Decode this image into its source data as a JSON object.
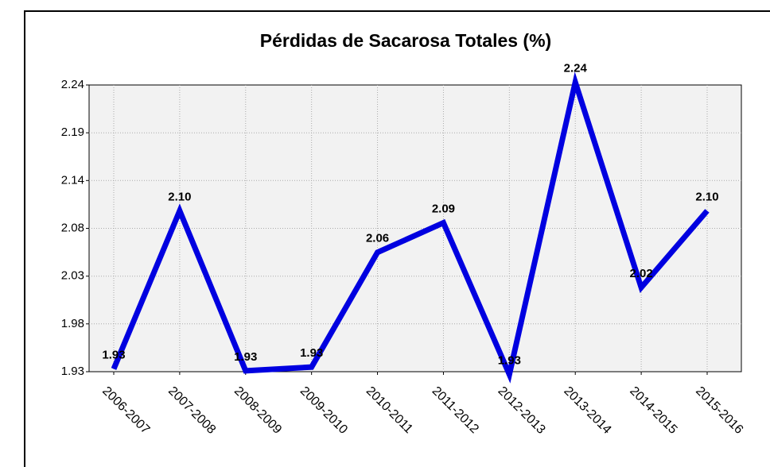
{
  "chart_data": {
    "type": "line",
    "title": "Pérdidas de Sacarosa Totales  (%)",
    "categories": [
      "2006-2007",
      "2007-2008",
      "2008-2009",
      "2009-2010",
      "2010-2011",
      "2011-2012",
      "2012-2013",
      "2013-2014",
      "2014-2015",
      "2015-2016"
    ],
    "series": [
      {
        "color": "#0000e0",
        "values": [
          1.933,
          2.104,
          1.931,
          1.935,
          2.059,
          2.091,
          1.927,
          2.243,
          2.021,
          2.104
        ],
        "value_labels": [
          "1.93",
          "2.10",
          "1.93",
          "1.93",
          "2.06",
          "2.09",
          "1.93",
          "2.24",
          "2.02",
          "2.10"
        ]
      }
    ],
    "ylim": [
      1.93,
      2.24
    ],
    "yticks": [
      1.93,
      {
        "value": 1.9817,
        "label": "1.98"
      },
      {
        "value": 2.0333,
        "label": "2.03"
      },
      {
        "value": 2.085,
        "label": "2.08"
      },
      {
        "value": 2.1367,
        "label": "2.14"
      },
      {
        "value": 2.1883,
        "label": "2.19"
      },
      2.24
    ],
    "grid": true
  }
}
